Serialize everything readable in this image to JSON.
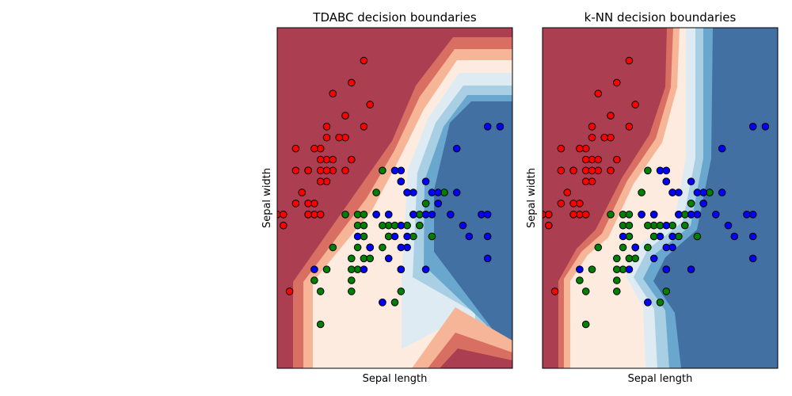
{
  "colors": {
    "red": "#ff0000",
    "green": "#008000",
    "blue": "#0000ff",
    "region_red": "#ac3e52",
    "region_blue": "#4270a3",
    "bands": [
      "#ac3e52",
      "#d96f63",
      "#f7b598",
      "#fdebe0",
      "#deebf2",
      "#a9cfe4",
      "#69a7cf",
      "#4270a3"
    ]
  },
  "chart_data": [
    {
      "type": "scatter",
      "title": "TDABC decision boundaries",
      "xlabel": "Sepal length",
      "ylabel": "Sepal width",
      "xlim": [
        4.3,
        8.1
      ],
      "ylim": [
        1.6,
        4.7
      ],
      "grid": false,
      "background": "filled decision regions (red / light / blue contour bands)",
      "series": [
        {
          "name": "class red",
          "color": "red",
          "points": [
            [
              4.9,
              3.0
            ],
            [
              4.6,
              3.1
            ],
            [
              5.0,
              3.6
            ],
            [
              5.4,
              3.9
            ],
            [
              4.6,
              3.4
            ],
            [
              5.0,
              3.4
            ],
            [
              4.4,
              2.9
            ],
            [
              4.9,
              3.1
            ],
            [
              5.4,
              3.7
            ],
            [
              4.8,
              3.4
            ],
            [
              4.8,
              3.0
            ],
            [
              4.3,
              3.0
            ],
            [
              5.8,
              4.0
            ],
            [
              5.7,
              4.4
            ],
            [
              5.4,
              3.9
            ],
            [
              5.1,
              3.5
            ],
            [
              5.7,
              3.8
            ],
            [
              5.1,
              3.8
            ],
            [
              5.4,
              3.4
            ],
            [
              5.1,
              3.7
            ],
            [
              4.6,
              3.6
            ],
            [
              5.1,
              3.3
            ],
            [
              4.8,
              3.4
            ],
            [
              5.0,
              3.0
            ],
            [
              5.2,
              3.5
            ],
            [
              5.2,
              3.4
            ],
            [
              4.7,
              3.2
            ],
            [
              4.8,
              3.1
            ],
            [
              5.5,
              4.2
            ],
            [
              5.2,
              4.1
            ],
            [
              5.5,
              3.5
            ],
            [
              4.9,
              3.6
            ],
            [
              4.4,
              3.0
            ],
            [
              5.1,
              3.4
            ],
            [
              5.0,
              3.5
            ],
            [
              4.5,
              2.3
            ],
            [
              5.3,
              3.7
            ],
            [
              5.0,
              3.3
            ]
          ]
        },
        {
          "name": "class green",
          "color": "green",
          "points": [
            [
              7.0,
              3.2
            ],
            [
              6.4,
              3.2
            ],
            [
              6.9,
              3.1
            ],
            [
              5.5,
              2.3
            ],
            [
              6.5,
              2.8
            ],
            [
              5.7,
              2.8
            ],
            [
              6.3,
              3.3
            ],
            [
              4.9,
              2.4
            ],
            [
              6.6,
              2.9
            ],
            [
              5.2,
              2.7
            ],
            [
              5.0,
              2.0
            ],
            [
              5.9,
              3.0
            ],
            [
              6.0,
              2.2
            ],
            [
              6.1,
              2.9
            ],
            [
              5.6,
              2.9
            ],
            [
              6.7,
              3.1
            ],
            [
              5.6,
              3.0
            ],
            [
              5.8,
              2.7
            ],
            [
              6.2,
              2.2
            ],
            [
              5.6,
              2.5
            ],
            [
              5.9,
              3.2
            ],
            [
              6.1,
              2.8
            ],
            [
              6.3,
              2.5
            ],
            [
              6.1,
              2.8
            ],
            [
              6.4,
              2.9
            ],
            [
              6.6,
              3.0
            ],
            [
              6.8,
              2.8
            ],
            [
              6.7,
              3.0
            ],
            [
              6.0,
              2.9
            ],
            [
              5.7,
              2.6
            ],
            [
              5.5,
              2.4
            ],
            [
              5.8,
              2.7
            ],
            [
              6.0,
              2.7
            ],
            [
              5.4,
              3.0
            ],
            [
              6.0,
              3.4
            ],
            [
              6.7,
              3.1
            ],
            [
              6.3,
              2.3
            ],
            [
              5.5,
              2.5
            ],
            [
              5.5,
              2.6
            ],
            [
              6.1,
              3.0
            ],
            [
              5.8,
              2.6
            ],
            [
              5.0,
              2.3
            ],
            [
              5.6,
              2.7
            ],
            [
              5.7,
              3.0
            ],
            [
              5.7,
              2.9
            ],
            [
              6.2,
              2.9
            ],
            [
              5.1,
              2.5
            ],
            [
              5.7,
              2.8
            ]
          ]
        },
        {
          "name": "class blue",
          "color": "blue",
          "points": [
            [
              6.3,
              3.3
            ],
            [
              5.8,
              2.7
            ],
            [
              7.1,
              3.0
            ],
            [
              6.3,
              2.9
            ],
            [
              6.5,
              3.0
            ],
            [
              7.6,
              3.0
            ],
            [
              4.9,
              2.5
            ],
            [
              7.3,
              2.9
            ],
            [
              6.7,
              2.5
            ],
            [
              7.2,
              3.6
            ],
            [
              6.5,
              3.2
            ],
            [
              6.4,
              2.7
            ],
            [
              6.8,
              3.0
            ],
            [
              5.7,
              2.5
            ],
            [
              6.4,
              3.2
            ],
            [
              7.7,
              3.8
            ],
            [
              7.7,
              2.6
            ],
            [
              6.0,
              2.2
            ],
            [
              6.9,
              3.2
            ],
            [
              5.6,
              2.8
            ],
            [
              7.7,
              2.8
            ],
            [
              6.3,
              2.7
            ],
            [
              6.7,
              3.3
            ],
            [
              7.2,
              3.2
            ],
            [
              6.2,
              2.8
            ],
            [
              6.1,
              3.0
            ],
            [
              6.4,
              2.8
            ],
            [
              7.4,
              2.8
            ],
            [
              7.9,
              3.8
            ],
            [
              6.1,
              2.6
            ],
            [
              7.7,
              3.0
            ],
            [
              6.3,
              3.4
            ],
            [
              6.9,
              3.1
            ],
            [
              5.8,
              2.7
            ],
            [
              6.8,
              3.2
            ],
            [
              6.7,
              3.0
            ],
            [
              6.3,
              2.5
            ],
            [
              6.5,
              3.0
            ],
            [
              6.2,
              3.4
            ],
            [
              5.9,
              3.0
            ]
          ]
        }
      ]
    },
    {
      "type": "scatter",
      "title": "k-NN decision boundaries",
      "xlabel": "Sepal length",
      "ylabel": "Sepal width",
      "xlim": [
        4.3,
        8.1
      ],
      "ylim": [
        1.6,
        4.7
      ],
      "grid": false,
      "background": "filled decision regions (red / light / blue contour bands)",
      "series": [
        {
          "name": "class red",
          "color": "red",
          "points": [
            [
              4.9,
              3.0
            ],
            [
              4.6,
              3.1
            ],
            [
              5.0,
              3.6
            ],
            [
              5.4,
              3.9
            ],
            [
              4.6,
              3.4
            ],
            [
              5.0,
              3.4
            ],
            [
              4.4,
              2.9
            ],
            [
              4.9,
              3.1
            ],
            [
              5.4,
              3.7
            ],
            [
              4.8,
              3.4
            ],
            [
              4.8,
              3.0
            ],
            [
              4.3,
              3.0
            ],
            [
              5.8,
              4.0
            ],
            [
              5.7,
              4.4
            ],
            [
              5.4,
              3.9
            ],
            [
              5.1,
              3.5
            ],
            [
              5.7,
              3.8
            ],
            [
              5.1,
              3.8
            ],
            [
              5.4,
              3.4
            ],
            [
              5.1,
              3.7
            ],
            [
              4.6,
              3.6
            ],
            [
              5.1,
              3.3
            ],
            [
              4.8,
              3.4
            ],
            [
              5.0,
              3.0
            ],
            [
              5.2,
              3.5
            ],
            [
              5.2,
              3.4
            ],
            [
              4.7,
              3.2
            ],
            [
              4.8,
              3.1
            ],
            [
              5.5,
              4.2
            ],
            [
              5.2,
              4.1
            ],
            [
              5.5,
              3.5
            ],
            [
              4.9,
              3.6
            ],
            [
              4.4,
              3.0
            ],
            [
              5.1,
              3.4
            ],
            [
              5.0,
              3.5
            ],
            [
              4.5,
              2.3
            ],
            [
              5.3,
              3.7
            ],
            [
              5.0,
              3.3
            ]
          ]
        },
        {
          "name": "class green",
          "color": "green",
          "points": [
            [
              7.0,
              3.2
            ],
            [
              6.4,
              3.2
            ],
            [
              6.9,
              3.1
            ],
            [
              5.5,
              2.3
            ],
            [
              6.5,
              2.8
            ],
            [
              5.7,
              2.8
            ],
            [
              6.3,
              3.3
            ],
            [
              4.9,
              2.4
            ],
            [
              6.6,
              2.9
            ],
            [
              5.2,
              2.7
            ],
            [
              5.0,
              2.0
            ],
            [
              5.9,
              3.0
            ],
            [
              6.0,
              2.2
            ],
            [
              6.1,
              2.9
            ],
            [
              5.6,
              2.9
            ],
            [
              6.7,
              3.1
            ],
            [
              5.6,
              3.0
            ],
            [
              5.8,
              2.7
            ],
            [
              6.2,
              2.2
            ],
            [
              5.6,
              2.5
            ],
            [
              5.9,
              3.2
            ],
            [
              6.1,
              2.8
            ],
            [
              6.3,
              2.5
            ],
            [
              6.1,
              2.8
            ],
            [
              6.4,
              2.9
            ],
            [
              6.6,
              3.0
            ],
            [
              6.8,
              2.8
            ],
            [
              6.7,
              3.0
            ],
            [
              6.0,
              2.9
            ],
            [
              5.7,
              2.6
            ],
            [
              5.5,
              2.4
            ],
            [
              5.8,
              2.7
            ],
            [
              6.0,
              2.7
            ],
            [
              5.4,
              3.0
            ],
            [
              6.0,
              3.4
            ],
            [
              6.7,
              3.1
            ],
            [
              6.3,
              2.3
            ],
            [
              5.5,
              2.5
            ],
            [
              5.5,
              2.6
            ],
            [
              6.1,
              3.0
            ],
            [
              5.8,
              2.6
            ],
            [
              5.0,
              2.3
            ],
            [
              5.6,
              2.7
            ],
            [
              5.7,
              3.0
            ],
            [
              5.7,
              2.9
            ],
            [
              6.2,
              2.9
            ],
            [
              5.1,
              2.5
            ],
            [
              5.7,
              2.8
            ]
          ]
        },
        {
          "name": "class blue",
          "color": "blue",
          "points": [
            [
              6.3,
              3.3
            ],
            [
              5.8,
              2.7
            ],
            [
              7.1,
              3.0
            ],
            [
              6.3,
              2.9
            ],
            [
              6.5,
              3.0
            ],
            [
              7.6,
              3.0
            ],
            [
              4.9,
              2.5
            ],
            [
              7.3,
              2.9
            ],
            [
              6.7,
              2.5
            ],
            [
              7.2,
              3.6
            ],
            [
              6.5,
              3.2
            ],
            [
              6.4,
              2.7
            ],
            [
              6.8,
              3.0
            ],
            [
              5.7,
              2.5
            ],
            [
              6.4,
              3.2
            ],
            [
              7.7,
              3.8
            ],
            [
              7.7,
              2.6
            ],
            [
              6.0,
              2.2
            ],
            [
              6.9,
              3.2
            ],
            [
              5.6,
              2.8
            ],
            [
              7.7,
              2.8
            ],
            [
              6.3,
              2.7
            ],
            [
              6.7,
              3.3
            ],
            [
              7.2,
              3.2
            ],
            [
              6.2,
              2.8
            ],
            [
              6.1,
              3.0
            ],
            [
              6.4,
              2.8
            ],
            [
              7.4,
              2.8
            ],
            [
              7.9,
              3.8
            ],
            [
              6.1,
              2.6
            ],
            [
              7.7,
              3.0
            ],
            [
              6.3,
              3.4
            ],
            [
              6.9,
              3.1
            ],
            [
              5.8,
              2.7
            ],
            [
              6.8,
              3.2
            ],
            [
              6.7,
              3.0
            ],
            [
              6.3,
              2.5
            ],
            [
              6.5,
              3.0
            ],
            [
              6.2,
              3.4
            ],
            [
              5.9,
              3.0
            ]
          ]
        }
      ]
    }
  ]
}
